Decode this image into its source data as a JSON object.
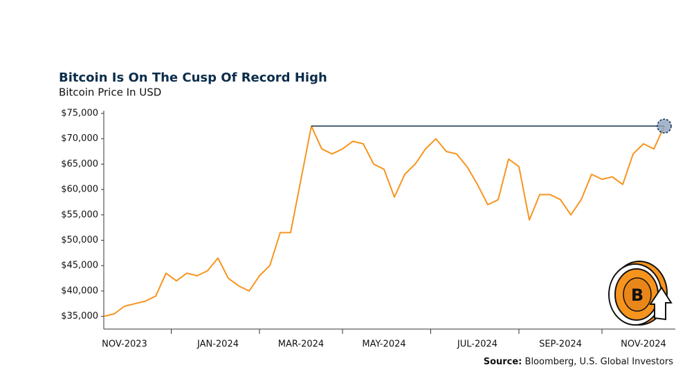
{
  "chart_data": {
    "type": "line",
    "title": "Bitcoin Is On The Cusp Of Record High",
    "subtitle": "Bitcoin Price In USD",
    "source_label": "Source:",
    "source": "Bloomberg, U.S. Global Investors",
    "categories": [
      null,
      null,
      "NOV-2023",
      null,
      null,
      null,
      null,
      null,
      null,
      null,
      null,
      "JAN-2024",
      null,
      null,
      null,
      null,
      null,
      null,
      null,
      "MAR-2024",
      null,
      null,
      null,
      null,
      null,
      null,
      null,
      "MAY-2024",
      null,
      null,
      null,
      null,
      null,
      null,
      null,
      null,
      "JUL-2024",
      null,
      null,
      null,
      null,
      null,
      null,
      null,
      "SEP-2024",
      null,
      null,
      null,
      null,
      null,
      null,
      null,
      "NOV-2024",
      null,
      null
    ],
    "series": [
      {
        "name": "Bitcoin",
        "color": "#f7941d",
        "values": [
          35000,
          35500,
          37000,
          37500,
          38000,
          39000,
          43500,
          42000,
          43500,
          43000,
          44000,
          46500,
          42500,
          41000,
          40000,
          43000,
          45000,
          51500,
          51500,
          62000,
          72500,
          68000,
          67000,
          68000,
          69500,
          69000,
          65000,
          64000,
          58500,
          63000,
          65000,
          68000,
          70000,
          67500,
          67000,
          64500,
          61000,
          57000,
          58000,
          66000,
          64500,
          54000,
          59000,
          59000,
          58000,
          55000,
          58000,
          63000,
          62000,
          62500,
          61000,
          67000,
          69000,
          68000,
          72500
        ]
      }
    ],
    "reference_line": {
      "value": 72500,
      "color": "#0b2d4a"
    },
    "ylim": [
      32500,
      75000
    ],
    "yticks": [
      {
        "value": 35000,
        "label": "$35,000"
      },
      {
        "value": 40000,
        "label": "$40,000"
      },
      {
        "value": 45000,
        "label": "$45,000"
      },
      {
        "value": 50000,
        "label": "$50,000"
      },
      {
        "value": 55000,
        "label": "$55,000"
      },
      {
        "value": 60000,
        "label": "$60,000"
      },
      {
        "value": 65000,
        "label": "$65,000"
      },
      {
        "value": 70000,
        "label": "$70,000"
      },
      {
        "value": 75000,
        "label": "$75,000"
      }
    ],
    "grid": false
  }
}
